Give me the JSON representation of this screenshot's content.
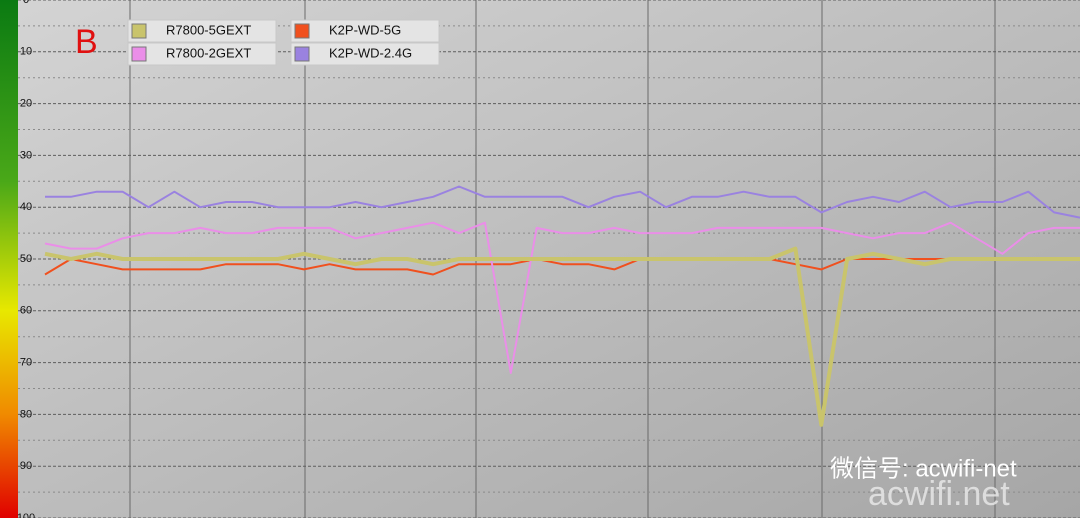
{
  "chart_data": {
    "type": "line",
    "annotation": "B",
    "watermark": [
      "微信号: acwifi-net",
      "acwifi.net"
    ],
    "categories": [
      null,
      null,
      null,
      null,
      null,
      null,
      null,
      null,
      null,
      null,
      null,
      null,
      null,
      null,
      null,
      null,
      null,
      null,
      null,
      null,
      null,
      null,
      null,
      null,
      null,
      null,
      null,
      null,
      null,
      null,
      null,
      null,
      null,
      null,
      null,
      null,
      null,
      null,
      null,
      null,
      null
    ],
    "series": [
      {
        "name": "R7800-5GEXT",
        "color": "#c9c46c",
        "width": 4,
        "values": [
          49,
          50,
          49,
          50,
          50,
          50,
          50,
          50,
          50,
          50,
          49,
          50,
          51,
          50,
          50,
          51,
          50,
          50,
          50,
          50,
          50,
          50,
          50,
          50,
          50,
          50,
          50,
          50,
          50,
          48,
          82,
          50,
          49,
          50,
          51,
          50,
          50,
          50,
          50,
          50,
          50
        ]
      },
      {
        "name": "R7800-2GEXT",
        "color": "#ea8ee8",
        "width": 2,
        "values": [
          47,
          48,
          48,
          46,
          45,
          45,
          44,
          45,
          45,
          44,
          44,
          44,
          46,
          45,
          44,
          43,
          45,
          43,
          72,
          44,
          45,
          45,
          44,
          45,
          45,
          45,
          44,
          44,
          44,
          44,
          44,
          45,
          46,
          45,
          45,
          43,
          46,
          49,
          45,
          44,
          44
        ]
      },
      {
        "name": "K2P-WD-5G",
        "color": "#f0501e",
        "width": 2,
        "values": [
          53,
          50,
          51,
          52,
          52,
          52,
          52,
          51,
          51,
          51,
          52,
          51,
          52,
          52,
          52,
          53,
          51,
          51,
          51,
          50,
          51,
          51,
          52,
          50,
          50,
          50,
          50,
          50,
          50,
          51,
          52,
          50,
          50,
          50,
          50,
          50,
          50,
          50,
          50,
          50,
          50
        ]
      },
      {
        "name": "K2P-WD-2.4G",
        "color": "#9a82e0",
        "width": 2,
        "values": [
          38,
          38,
          37,
          37,
          40,
          37,
          40,
          39,
          39,
          40,
          40,
          40,
          39,
          40,
          39,
          38,
          36,
          38,
          38,
          38,
          38,
          40,
          38,
          37,
          40,
          38,
          38,
          37,
          38,
          38,
          41,
          39,
          38,
          39,
          37,
          40,
          39,
          39,
          37,
          41,
          42
        ]
      }
    ],
    "ylim": [
      0,
      100
    ],
    "yticks": [
      0,
      10,
      20,
      30,
      40,
      50,
      60,
      70,
      80,
      90,
      100
    ],
    "y_inverted": true,
    "grid": true
  }
}
